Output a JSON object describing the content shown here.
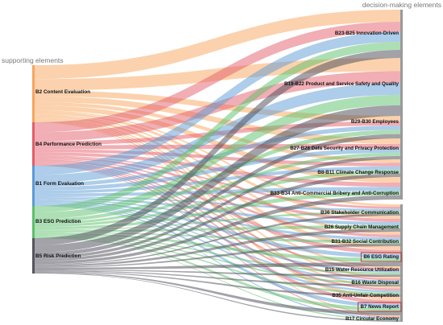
{
  "header": {
    "left_title": "supporting elements",
    "right_title": "decision-making elements"
  },
  "left_nodes": [
    {
      "id": "b2",
      "label": "B2 Content Evaluation",
      "color": "#f8a55b"
    },
    {
      "id": "b4",
      "label": "B4 Performance Prediction",
      "color": "#e35d6a"
    },
    {
      "id": "b1",
      "label": "B1 Form Evaluation",
      "color": "#5b9bd5"
    },
    {
      "id": "b3",
      "label": "B3 ESG Prediction",
      "color": "#5cbf6a"
    },
    {
      "id": "b5",
      "label": "B5 Risk Prediction",
      "color": "#555560"
    }
  ],
  "right_nodes": [
    {
      "id": "r1",
      "label": "B23-B25 Innovation-Driven",
      "boxed": false
    },
    {
      "id": "r2",
      "label": "B19-B22 Product and Service Safety and Quality",
      "boxed": false
    },
    {
      "id": "r3",
      "label": "B29-B30 Employees",
      "boxed": false
    },
    {
      "id": "r4",
      "label": "B27-B28 Data Security and Privacy Protection",
      "boxed": false
    },
    {
      "id": "r5",
      "label": "B8-B11 Climate Change Response",
      "boxed": false
    },
    {
      "id": "r6",
      "label": "B33-B34 Anti-Commercial Bribery and Anti-Corruption",
      "boxed": false
    },
    {
      "id": "r7",
      "label": "B36 Stakeholder Communication",
      "boxed": false
    },
    {
      "id": "r8",
      "label": "B26 Supply Chain Management",
      "boxed": false
    },
    {
      "id": "r9",
      "label": "B31-B32 Social Contribution",
      "boxed": false
    },
    {
      "id": "r10",
      "label": "B6 ESG Rating",
      "boxed": true
    },
    {
      "id": "r11",
      "label": "B15 Water Resource Utilization",
      "boxed": false
    },
    {
      "id": "r12",
      "label": "B16 Waste Disposal",
      "boxed": false
    },
    {
      "id": "r13",
      "label": "B35 Anti-Unfair Competition",
      "boxed": false
    },
    {
      "id": "r14",
      "label": "B7 News Report",
      "boxed": true
    },
    {
      "id": "r15",
      "label": "B17 Circular Economy",
      "boxed": false
    }
  ]
}
